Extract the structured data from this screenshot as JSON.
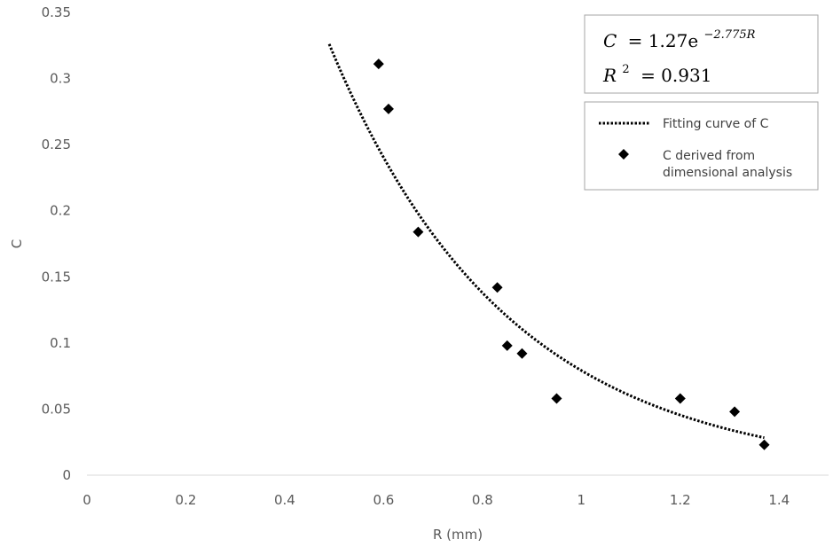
{
  "chart_data": {
    "type": "scatter",
    "title": "",
    "xlabel": "R (mm)",
    "ylabel": "C",
    "xlim": [
      0,
      1.5
    ],
    "ylim": [
      0,
      0.35
    ],
    "x_ticks": [
      0,
      0.2,
      0.4,
      0.6,
      0.8,
      1,
      1.2,
      1.4
    ],
    "y_ticks": [
      0,
      0.05,
      0.1,
      0.15,
      0.2,
      0.25,
      0.3,
      0.35
    ],
    "grid": false,
    "legend_position": "top-right",
    "series": [
      {
        "name": "Fitting curve of C",
        "kind": "line",
        "style": "dotted",
        "color": "#000000",
        "x_range": [
          0.49,
          1.37
        ]
      },
      {
        "name": "C derived from dimensional analysis",
        "kind": "scatter",
        "marker": "diamond",
        "color": "#000000",
        "points": [
          [
            0.59,
            0.311
          ],
          [
            0.61,
            0.277
          ],
          [
            0.67,
            0.184
          ],
          [
            0.83,
            0.142
          ],
          [
            0.85,
            0.098
          ],
          [
            0.88,
            0.092
          ],
          [
            0.95,
            0.058
          ],
          [
            1.2,
            0.058
          ],
          [
            1.31,
            0.048
          ],
          [
            1.37,
            0.023
          ]
        ]
      }
    ],
    "fit": {
      "a": 1.27,
      "b": -2.775
    },
    "annotation": {
      "equation_lhs": "C",
      "equation_rhs": "= 1.27e",
      "equation_exponent": "−2.775R",
      "r2_label": "R",
      "r2_power": "2",
      "r2_value": "= 0.931"
    }
  }
}
